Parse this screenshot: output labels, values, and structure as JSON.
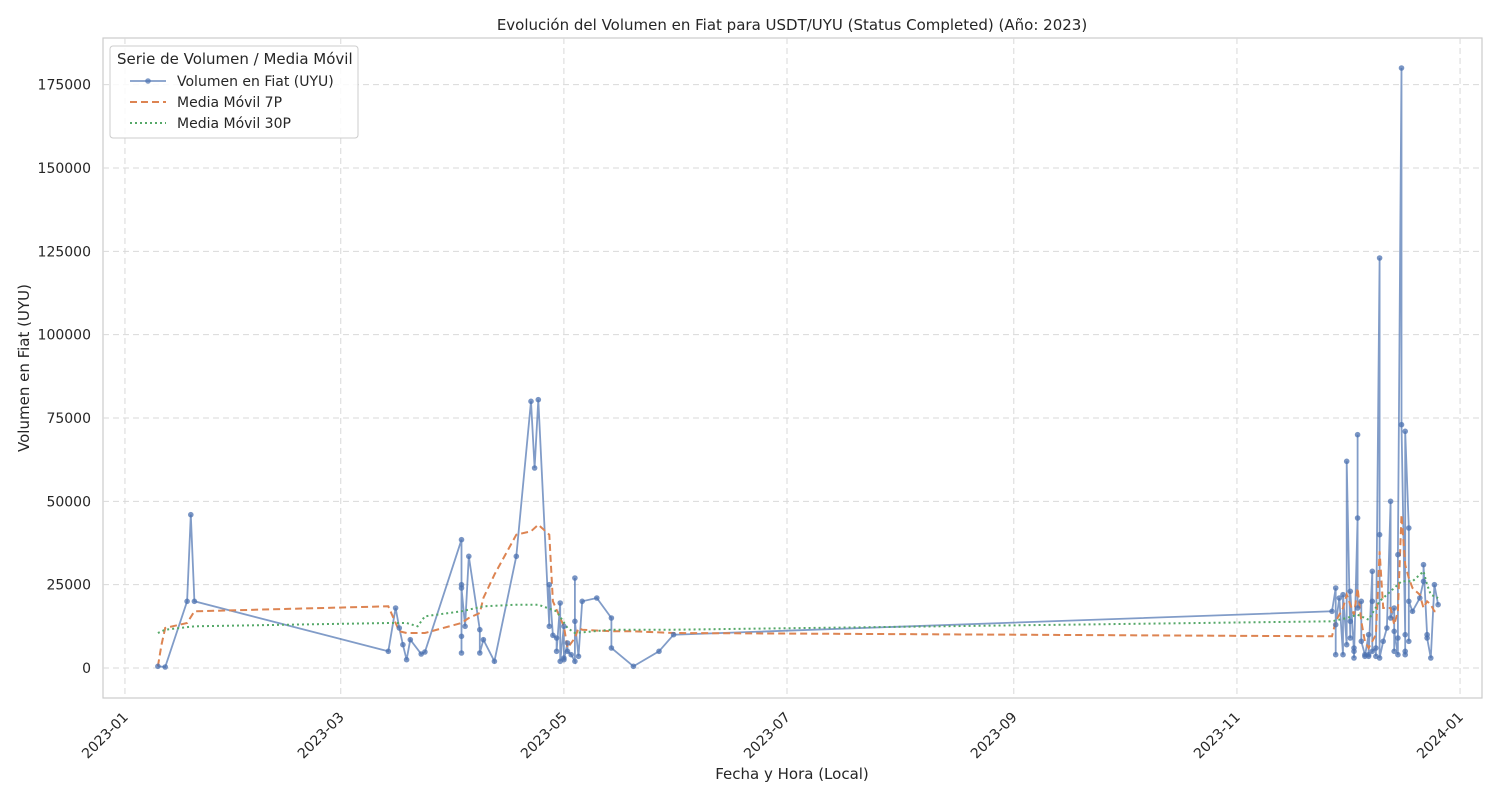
{
  "chart_data": {
    "type": "line",
    "title": "Evolución del Volumen en Fiat para USDT/UYU (Status Completed) (Año: 2023)",
    "xlabel": "Fecha y Hora (Local)",
    "ylabel": "Volumen en Fiat (UYU)",
    "x_axis_type": "date",
    "xlim": [
      "2022-12-26",
      "2024-01-07"
    ],
    "ylim": [
      -9000,
      189000
    ],
    "x_ticks": [
      "2023-01",
      "2023-03",
      "2023-05",
      "2023-07",
      "2023-09",
      "2023-11",
      "2024-01"
    ],
    "y_ticks": [
      0,
      25000,
      50000,
      75000,
      100000,
      125000,
      150000,
      175000
    ],
    "grid": true,
    "legend": {
      "title": "Serie de Volumen / Media Móvil",
      "position": "top-left"
    },
    "series": [
      {
        "name": "Volumen en Fiat (UYU)",
        "color": "#4c72b0",
        "style": "solid-markers",
        "points": [
          [
            "2023-01-10",
            500
          ],
          [
            "2023-01-12",
            300
          ],
          [
            "2023-01-18",
            20000
          ],
          [
            "2023-01-19",
            46000
          ],
          [
            "2023-01-20",
            20000
          ],
          [
            "2023-03-14",
            5000
          ],
          [
            "2023-03-16",
            18000
          ],
          [
            "2023-03-17",
            12000
          ],
          [
            "2023-03-18",
            7000
          ],
          [
            "2023-03-19",
            2500
          ],
          [
            "2023-03-20",
            8500
          ],
          [
            "2023-03-23",
            4200
          ],
          [
            "2023-03-24",
            4800
          ],
          [
            "2023-04-03",
            38500
          ],
          [
            "2023-04-03",
            25000
          ],
          [
            "2023-04-03",
            9500
          ],
          [
            "2023-04-03",
            4500
          ],
          [
            "2023-04-03",
            24000
          ],
          [
            "2023-04-04",
            12500
          ],
          [
            "2023-04-05",
            33500
          ],
          [
            "2023-04-08",
            11500
          ],
          [
            "2023-04-08",
            4500
          ],
          [
            "2023-04-09",
            8500
          ],
          [
            "2023-04-12",
            2000
          ],
          [
            "2023-04-18",
            33500
          ],
          [
            "2023-04-22",
            80000
          ],
          [
            "2023-04-23",
            60000
          ],
          [
            "2023-04-24",
            80500
          ],
          [
            "2023-04-27",
            12500
          ],
          [
            "2023-04-27",
            25000
          ],
          [
            "2023-04-28",
            9800
          ],
          [
            "2023-04-29",
            9000
          ],
          [
            "2023-04-29",
            5000
          ],
          [
            "2023-04-30",
            19500
          ],
          [
            "2023-04-30",
            2000
          ],
          [
            "2023-05-01",
            12500
          ],
          [
            "2023-05-01",
            3000
          ],
          [
            "2023-05-01",
            2500
          ],
          [
            "2023-05-02",
            7500
          ],
          [
            "2023-05-02",
            5000
          ],
          [
            "2023-05-03",
            4000
          ],
          [
            "2023-05-04",
            2000
          ],
          [
            "2023-05-04",
            27000
          ],
          [
            "2023-05-04",
            14000
          ],
          [
            "2023-05-05",
            3500
          ],
          [
            "2023-05-06",
            20000
          ],
          [
            "2023-05-10",
            21000
          ],
          [
            "2023-05-14",
            15000
          ],
          [
            "2023-05-14",
            6000
          ],
          [
            "2023-05-20",
            500
          ],
          [
            "2023-05-27",
            5000
          ],
          [
            "2023-05-31",
            10000
          ],
          [
            "2023-11-27",
            17000
          ],
          [
            "2023-11-28",
            24000
          ],
          [
            "2023-11-28",
            4000
          ],
          [
            "2023-11-28",
            13000
          ],
          [
            "2023-11-29",
            21000
          ],
          [
            "2023-11-30",
            4000
          ],
          [
            "2023-11-30",
            22000
          ],
          [
            "2023-12-01",
            7000
          ],
          [
            "2023-12-01",
            62000
          ],
          [
            "2023-12-02",
            9000
          ],
          [
            "2023-12-02",
            14000
          ],
          [
            "2023-12-02",
            23000
          ],
          [
            "2023-12-03",
            5000
          ],
          [
            "2023-12-03",
            6000
          ],
          [
            "2023-12-03",
            3000
          ],
          [
            "2023-12-04",
            45000
          ],
          [
            "2023-12-04",
            70000
          ],
          [
            "2023-12-04",
            18000
          ],
          [
            "2023-12-05",
            20000
          ],
          [
            "2023-12-05",
            8000
          ],
          [
            "2023-12-06",
            4000
          ],
          [
            "2023-12-06",
            3500
          ],
          [
            "2023-12-07",
            10000
          ],
          [
            "2023-12-07",
            3500
          ],
          [
            "2023-12-07",
            4000
          ],
          [
            "2023-12-08",
            29000
          ],
          [
            "2023-12-08",
            20000
          ],
          [
            "2023-12-08",
            5000
          ],
          [
            "2023-12-09",
            6000
          ],
          [
            "2023-12-09",
            3500
          ],
          [
            "2023-12-10",
            123000
          ],
          [
            "2023-12-10",
            40000
          ],
          [
            "2023-12-10",
            3000
          ],
          [
            "2023-12-11",
            8000
          ],
          [
            "2023-12-12",
            12000
          ],
          [
            "2023-12-13",
            50000
          ],
          [
            "2023-12-13",
            15000
          ],
          [
            "2023-12-14",
            18000
          ],
          [
            "2023-12-14",
            5000
          ],
          [
            "2023-12-14",
            11000
          ],
          [
            "2023-12-15",
            4000
          ],
          [
            "2023-12-15",
            9000
          ],
          [
            "2023-12-15",
            34000
          ],
          [
            "2023-12-16",
            180000
          ],
          [
            "2023-12-16",
            73000
          ],
          [
            "2023-12-17",
            10000
          ],
          [
            "2023-12-17",
            5000
          ],
          [
            "2023-12-17",
            4000
          ],
          [
            "2023-12-17",
            71000
          ],
          [
            "2023-12-18",
            42000
          ],
          [
            "2023-12-18",
            8000
          ],
          [
            "2023-12-18",
            20000
          ],
          [
            "2023-12-19",
            17000
          ],
          [
            "2023-12-21",
            21000
          ],
          [
            "2023-12-22",
            26000
          ],
          [
            "2023-12-22",
            31000
          ],
          [
            "2023-12-23",
            10000
          ],
          [
            "2023-12-23",
            9000
          ],
          [
            "2023-12-24",
            3000
          ],
          [
            "2023-12-25",
            25000
          ],
          [
            "2023-12-26",
            19000
          ]
        ]
      },
      {
        "name": "Media Móvil 7P",
        "color": "#dd8452",
        "style": "dashed",
        "points": [
          [
            "2023-01-10",
            500
          ],
          [
            "2023-01-11",
            7000
          ],
          [
            "2023-01-12",
            12000
          ],
          [
            "2023-01-18",
            13500
          ],
          [
            "2023-01-20",
            17000
          ],
          [
            "2023-03-14",
            18500
          ],
          [
            "2023-03-17",
            11000
          ],
          [
            "2023-03-19",
            10500
          ],
          [
            "2023-03-24",
            10500
          ],
          [
            "2023-04-03",
            13500
          ],
          [
            "2023-04-05",
            15000
          ],
          [
            "2023-04-08",
            16500
          ],
          [
            "2023-04-09",
            21000
          ],
          [
            "2023-04-12",
            28000
          ],
          [
            "2023-04-18",
            40000
          ],
          [
            "2023-04-22",
            41000
          ],
          [
            "2023-04-24",
            43000
          ],
          [
            "2023-04-27",
            40000
          ],
          [
            "2023-04-28",
            20000
          ],
          [
            "2023-04-30",
            15000
          ],
          [
            "2023-05-01",
            12500
          ],
          [
            "2023-05-02",
            6000
          ],
          [
            "2023-05-04",
            9000
          ],
          [
            "2023-05-05",
            12000
          ],
          [
            "2023-05-06",
            11500
          ],
          [
            "2023-05-14",
            11000
          ],
          [
            "2023-05-20",
            11000
          ],
          [
            "2023-05-31",
            10500
          ],
          [
            "2023-11-27",
            9500
          ],
          [
            "2023-11-28",
            14000
          ],
          [
            "2023-11-30",
            18000
          ],
          [
            "2023-12-01",
            22000
          ],
          [
            "2023-12-02",
            19000
          ],
          [
            "2023-12-03",
            16000
          ],
          [
            "2023-12-04",
            24000
          ],
          [
            "2023-12-05",
            14000
          ],
          [
            "2023-12-06",
            8000
          ],
          [
            "2023-12-07",
            6000
          ],
          [
            "2023-12-08",
            8000
          ],
          [
            "2023-12-09",
            10000
          ],
          [
            "2023-12-10",
            35000
          ],
          [
            "2023-12-11",
            18000
          ],
          [
            "2023-12-13",
            18000
          ],
          [
            "2023-12-14",
            13000
          ],
          [
            "2023-12-15",
            17000
          ],
          [
            "2023-12-16",
            46000
          ],
          [
            "2023-12-17",
            31000
          ],
          [
            "2023-12-18",
            27000
          ],
          [
            "2023-12-19",
            24000
          ],
          [
            "2023-12-21",
            22000
          ],
          [
            "2023-12-22",
            18000
          ],
          [
            "2023-12-23",
            20000
          ],
          [
            "2023-12-24",
            19000
          ],
          [
            "2023-12-25",
            17000
          ],
          [
            "2023-12-26",
            17000
          ]
        ]
      },
      {
        "name": "Media Móvil 30P",
        "color": "#55a868",
        "style": "dotted",
        "points": [
          [
            "2023-01-10",
            10500
          ],
          [
            "2023-01-12",
            11500
          ],
          [
            "2023-01-20",
            12500
          ],
          [
            "2023-03-14",
            13500
          ],
          [
            "2023-03-19",
            13500
          ],
          [
            "2023-03-22",
            12500
          ],
          [
            "2023-03-24",
            15500
          ],
          [
            "2023-04-03",
            17000
          ],
          [
            "2023-04-09",
            18500
          ],
          [
            "2023-04-18",
            19000
          ],
          [
            "2023-04-24",
            19000
          ],
          [
            "2023-04-29",
            17000
          ],
          [
            "2023-05-02",
            12000
          ],
          [
            "2023-05-04",
            10500
          ],
          [
            "2023-05-14",
            11500
          ],
          [
            "2023-05-31",
            11500
          ],
          [
            "2023-11-27",
            14000
          ],
          [
            "2023-12-01",
            15000
          ],
          [
            "2023-12-04",
            16000
          ],
          [
            "2023-12-07",
            14500
          ],
          [
            "2023-12-10",
            20000
          ],
          [
            "2023-12-13",
            23000
          ],
          [
            "2023-12-16",
            26000
          ],
          [
            "2023-12-19",
            26000
          ],
          [
            "2023-12-22",
            29000
          ],
          [
            "2023-12-23",
            25000
          ],
          [
            "2023-12-24",
            22000
          ],
          [
            "2023-12-26",
            21000
          ]
        ]
      }
    ]
  }
}
